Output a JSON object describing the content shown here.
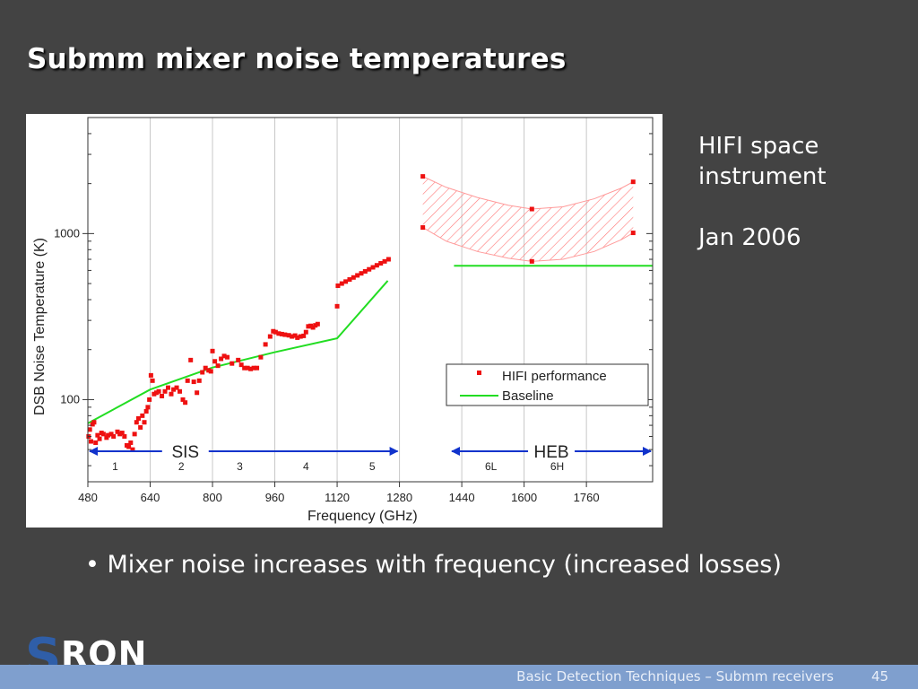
{
  "slide": {
    "title": "Submm mixer noise temperatures",
    "note_line1": "HIFI space",
    "note_line2": "instrument",
    "note_line3": "Jan 2006",
    "bullet": "• Mixer noise increases with frequency (increased losses)",
    "footer_text": "Basic Detection Techniques – Submm receivers",
    "page_number": "45",
    "logo_s": "S",
    "logo_ron": "RON"
  },
  "chart_data": {
    "type": "scatter",
    "xlabel": "Frequency (GHz)",
    "ylabel": "DSB Noise Temperature (K)",
    "xlim": [
      480,
      1930
    ],
    "ylim": [
      32,
      5000
    ],
    "yscale": "log",
    "x_ticks": [
      480,
      640,
      800,
      960,
      1120,
      1280,
      1440,
      1600,
      1760
    ],
    "y_ticks": [
      100,
      1000
    ],
    "grid": "vertical",
    "legend_position": "lower-right",
    "colors": {
      "performance": "#ee1111",
      "baseline": "#22dd22",
      "arrows": "#1133cc",
      "hatch": "#ff7777"
    },
    "bands": {
      "SIS": {
        "label": "SIS",
        "range": [
          480,
          1280
        ]
      },
      "HEB": {
        "label": "HEB",
        "range": [
          1410,
          1930
        ]
      },
      "band_labels": [
        {
          "label": "1",
          "x": 550
        },
        {
          "label": "2",
          "x": 720
        },
        {
          "label": "3",
          "x": 870
        },
        {
          "label": "4",
          "x": 1040
        },
        {
          "label": "5",
          "x": 1210
        },
        {
          "label": "6L",
          "x": 1515
        },
        {
          "label": "6H",
          "x": 1685
        }
      ]
    },
    "series": [
      {
        "name": "HIFI performance",
        "marker": "square",
        "points": [
          [
            482,
            60
          ],
          [
            485,
            66
          ],
          [
            488,
            56
          ],
          [
            492,
            71
          ],
          [
            496,
            73
          ],
          [
            500,
            55
          ],
          [
            505,
            61
          ],
          [
            510,
            58
          ],
          [
            515,
            63
          ],
          [
            520,
            62
          ],
          [
            528,
            59
          ],
          [
            532,
            61
          ],
          [
            540,
            62
          ],
          [
            546,
            60
          ],
          [
            556,
            64
          ],
          [
            562,
            62
          ],
          [
            568,
            63
          ],
          [
            574,
            60
          ],
          [
            580,
            53
          ],
          [
            585,
            52
          ],
          [
            590,
            55
          ],
          [
            595,
            50
          ],
          [
            600,
            62
          ],
          [
            605,
            73
          ],
          [
            610,
            77
          ],
          [
            615,
            68
          ],
          [
            620,
            80
          ],
          [
            625,
            73
          ],
          [
            630,
            85
          ],
          [
            634,
            90
          ],
          [
            638,
            100
          ],
          [
            642,
            140
          ],
          [
            646,
            130
          ],
          [
            650,
            108
          ],
          [
            656,
            110
          ],
          [
            662,
            112
          ],
          [
            670,
            105
          ],
          [
            678,
            112
          ],
          [
            686,
            118
          ],
          [
            694,
            108
          ],
          [
            700,
            115
          ],
          [
            708,
            118
          ],
          [
            716,
            112
          ],
          [
            724,
            100
          ],
          [
            730,
            96
          ],
          [
            736,
            130
          ],
          [
            744,
            173
          ],
          [
            752,
            128
          ],
          [
            760,
            110
          ],
          [
            766,
            130
          ],
          [
            774,
            146
          ],
          [
            782,
            155
          ],
          [
            790,
            150
          ],
          [
            796,
            148
          ],
          [
            800,
            196
          ],
          [
            806,
            170
          ],
          [
            814,
            160
          ],
          [
            822,
            176
          ],
          [
            830,
            183
          ],
          [
            838,
            180
          ],
          [
            850,
            165
          ],
          [
            866,
            173
          ],
          [
            874,
            162
          ],
          [
            882,
            155
          ],
          [
            890,
            155
          ],
          [
            898,
            153
          ],
          [
            906,
            155
          ],
          [
            914,
            155
          ],
          [
            924,
            180
          ],
          [
            936,
            215
          ],
          [
            948,
            240
          ],
          [
            956,
            258
          ],
          [
            962,
            255
          ],
          [
            970,
            250
          ],
          [
            978,
            248
          ],
          [
            986,
            246
          ],
          [
            996,
            244
          ],
          [
            1004,
            240
          ],
          [
            1012,
            243
          ],
          [
            1018,
            236
          ],
          [
            1026,
            240
          ],
          [
            1034,
            242
          ],
          [
            1040,
            255
          ],
          [
            1046,
            276
          ],
          [
            1052,
            278
          ],
          [
            1058,
            272
          ],
          [
            1064,
            280
          ],
          [
            1070,
            285
          ],
          [
            1120,
            365
          ],
          [
            1122,
            485
          ],
          [
            1132,
            500
          ],
          [
            1142,
            514
          ],
          [
            1152,
            529
          ],
          [
            1162,
            544
          ],
          [
            1172,
            560
          ],
          [
            1182,
            576
          ],
          [
            1192,
            592
          ],
          [
            1202,
            609
          ],
          [
            1212,
            626
          ],
          [
            1222,
            644
          ],
          [
            1232,
            662
          ],
          [
            1242,
            680
          ],
          [
            1252,
            700
          ],
          [
            1340,
            2210
          ],
          [
            1340,
            1088
          ],
          [
            1620,
            1405
          ],
          [
            1620,
            680
          ],
          [
            1880,
            2050
          ],
          [
            1880,
            1010
          ]
        ]
      },
      {
        "name": "Baseline",
        "line": [
          [
            480,
            72
          ],
          [
            640,
            115
          ],
          [
            800,
            156
          ],
          [
            960,
            193
          ],
          [
            1120,
            234
          ],
          [
            1250,
            520
          ]
        ],
        "segment": [
          [
            1420,
            640
          ],
          [
            1930,
            640
          ]
        ]
      }
    ],
    "performance_band": {
      "upper": [
        [
          1340,
          2210
        ],
        [
          1400,
          1900
        ],
        [
          1480,
          1650
        ],
        [
          1560,
          1480
        ],
        [
          1620,
          1405
        ],
        [
          1700,
          1450
        ],
        [
          1780,
          1620
        ],
        [
          1850,
          1880
        ],
        [
          1880,
          2050
        ]
      ],
      "lower": [
        [
          1340,
          1088
        ],
        [
          1400,
          900
        ],
        [
          1480,
          780
        ],
        [
          1560,
          710
        ],
        [
          1620,
          680
        ],
        [
          1700,
          700
        ],
        [
          1780,
          780
        ],
        [
          1850,
          920
        ],
        [
          1880,
          1010
        ]
      ]
    }
  }
}
